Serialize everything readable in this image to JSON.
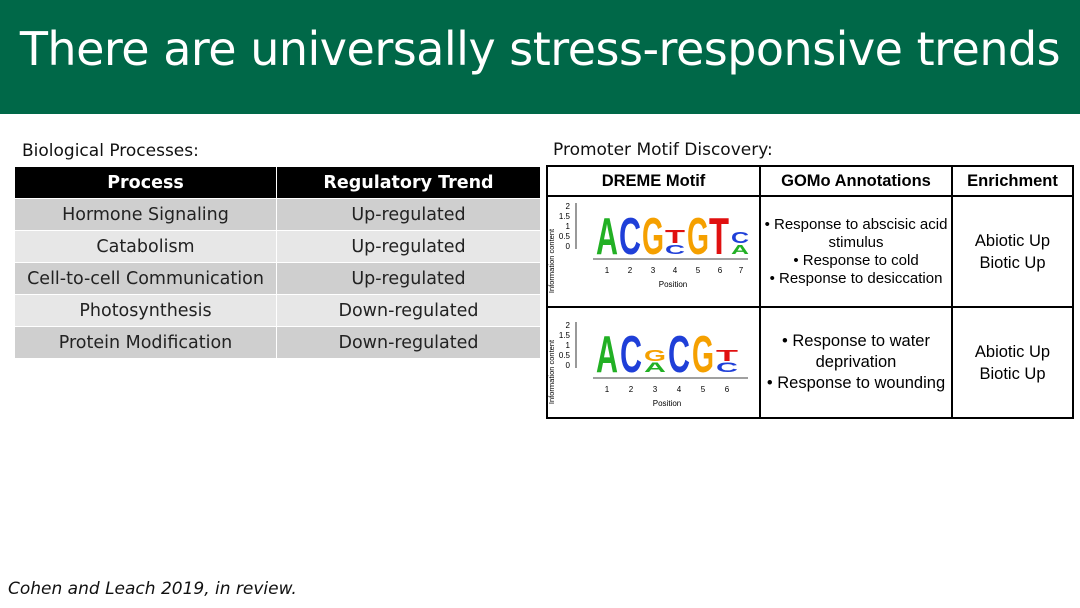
{
  "slide": {
    "title": "There are universally stress-responsive trends",
    "title_band_color": "#006848",
    "citation": "Cohen and Leach 2019, in review."
  },
  "biological_processes": {
    "label": "Biological Processes:",
    "headers": [
      "Process",
      "Regulatory Trend"
    ],
    "rows": [
      {
        "process": "Hormone Signaling",
        "trend": "Up-regulated"
      },
      {
        "process": "Catabolism",
        "trend": "Up-regulated"
      },
      {
        "process": "Cell-to-cell Communication",
        "trend": "Up-regulated"
      },
      {
        "process": "Photosynthesis",
        "trend": "Down-regulated"
      },
      {
        "process": "Protein Modification",
        "trend": "Down-regulated"
      }
    ]
  },
  "motif_discovery": {
    "label": "Promoter Motif Discovery:",
    "headers": [
      "DREME Motif",
      "GOMo Annotations",
      "Enrichment"
    ],
    "logo_axes": {
      "ylabel": "Information content",
      "xlabel": "Position",
      "yticks": [
        "2",
        "1.5",
        "1",
        "0.5",
        "0"
      ]
    },
    "rows": [
      {
        "positions": [
          "1",
          "2",
          "3",
          "4",
          "5",
          "6",
          "7"
        ],
        "annotations": [
          "Response to abscisic acid stimulus",
          "Response to cold",
          "Response to desiccation"
        ],
        "enrichment": [
          "Abiotic Up",
          "Biotic Up"
        ]
      },
      {
        "positions": [
          "1",
          "2",
          "3",
          "4",
          "5",
          "6"
        ],
        "annotations": [
          "Response to water deprivation",
          "Response to wounding"
        ],
        "enrichment": [
          "Abiotic Up",
          "Biotic Up"
        ]
      }
    ],
    "base_colors": {
      "A": "#22b024",
      "C": "#1f3fd8",
      "G": "#f5a000",
      "T": "#e01010"
    }
  }
}
